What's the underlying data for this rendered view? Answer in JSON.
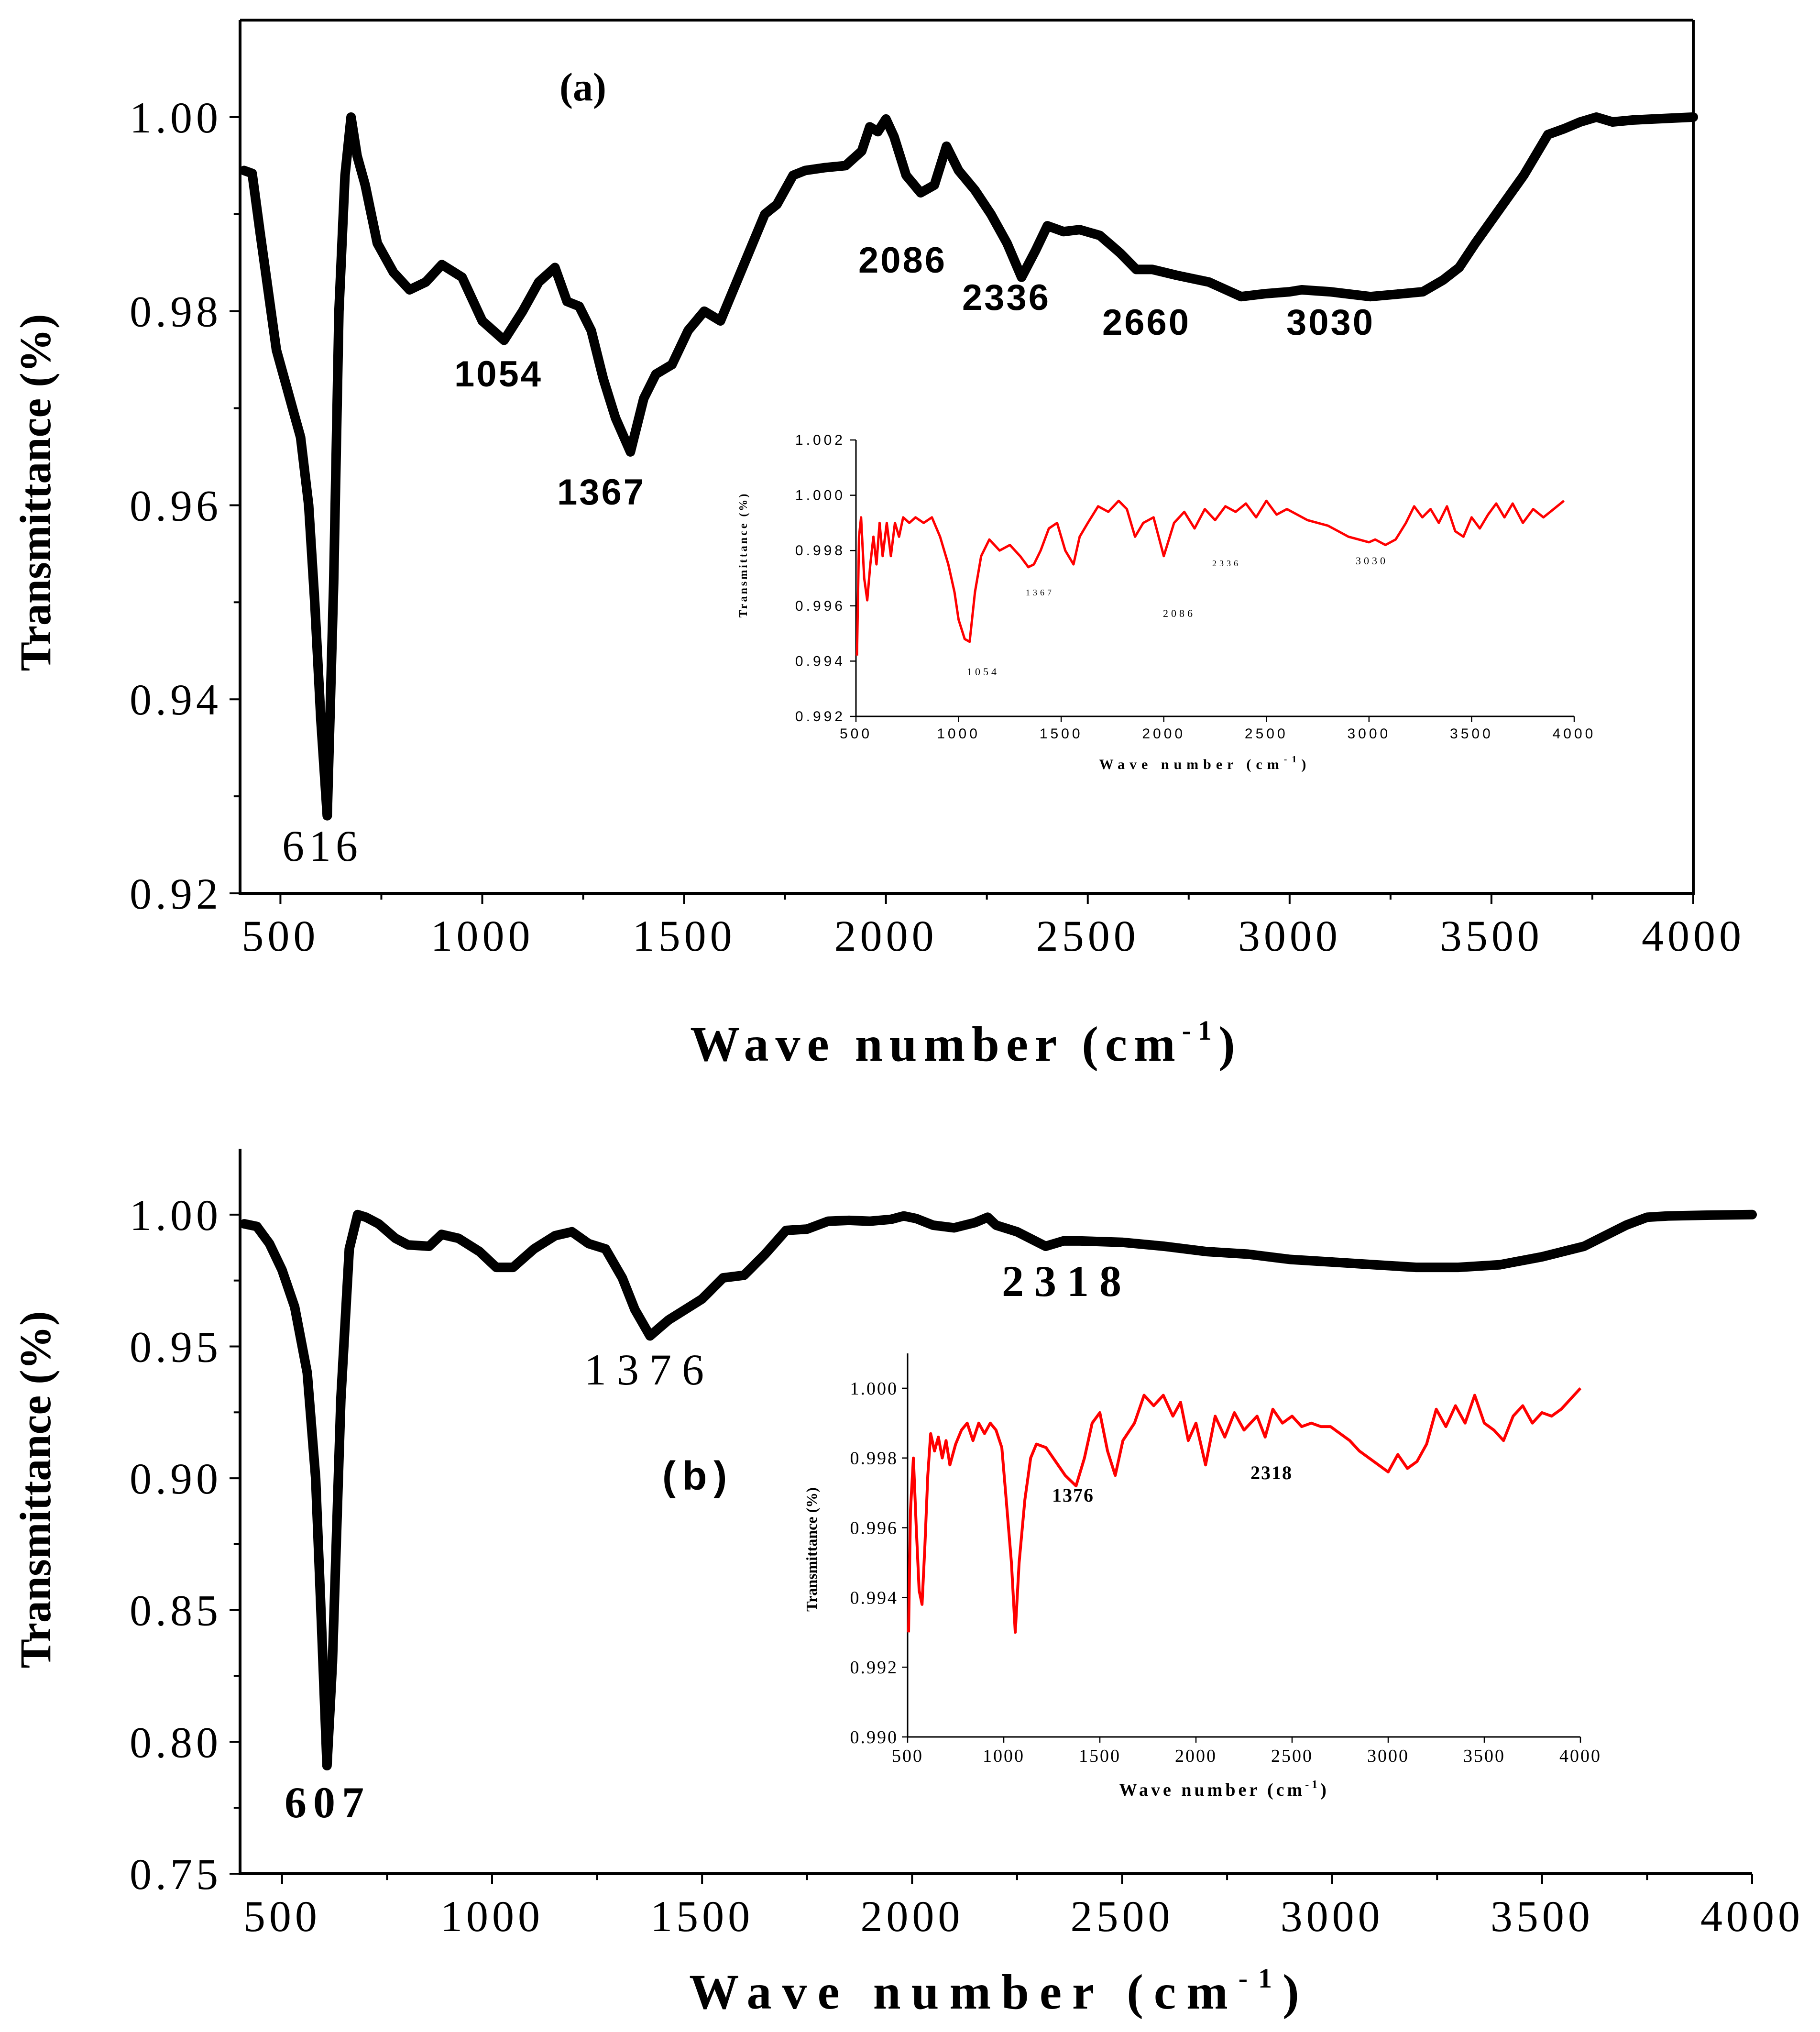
{
  "chart_data": [
    {
      "type": "line",
      "panel_label": "(a)",
      "xlabel_main": "Wave number (cm",
      "xlabel_sup": "-1",
      "xlabel_close": ")",
      "ylabel": "Transmittance (%)",
      "xlim": [
        400,
        4000
      ],
      "ylim": [
        0.92,
        1.01
      ],
      "xticks": [
        500,
        1000,
        1500,
        2000,
        2500,
        3000,
        3500,
        4000
      ],
      "yticks": [
        0.92,
        0.94,
        0.96,
        0.98,
        1.0
      ],
      "xtick_labels": [
        "500",
        "1000",
        "1500",
        "2000",
        "2500",
        "3000",
        "3500",
        "4000"
      ],
      "ytick_labels": [
        "0.92",
        "0.94",
        "0.96",
        "0.98",
        "1.00"
      ],
      "series": [
        {
          "name": "main",
          "color": "#000000",
          "x": [
            410,
            430,
            450,
            470,
            490,
            510,
            530,
            550,
            570,
            585,
            600,
            616,
            632,
            645,
            660,
            675,
            690,
            710,
            740,
            780,
            820,
            860,
            900,
            950,
            1000,
            1054,
            1100,
            1140,
            1180,
            1210,
            1240,
            1270,
            1300,
            1330,
            1367,
            1400,
            1430,
            1470,
            1510,
            1550,
            1590,
            1640,
            1680,
            1700,
            1730,
            1770,
            1800,
            1850,
            1900,
            1940,
            1960,
            1980,
            2000,
            2020,
            2050,
            2086,
            2120,
            2150,
            2180,
            2220,
            2260,
            2300,
            2336,
            2370,
            2400,
            2440,
            2480,
            2530,
            2580,
            2620,
            2660,
            2720,
            2800,
            2880,
            2940,
            3000,
            3030,
            3100,
            3200,
            3280,
            3330,
            3380,
            3420,
            3460,
            3520,
            3580,
            3640,
            3680,
            3720,
            3760,
            3800,
            3850,
            3900,
            3950,
            4000
          ],
          "y": [
            0.9945,
            0.9942,
            0.988,
            0.982,
            0.976,
            0.973,
            0.97,
            0.967,
            0.96,
            0.95,
            0.938,
            0.928,
            0.952,
            0.98,
            0.994,
            1.0,
            0.996,
            0.993,
            0.987,
            0.984,
            0.9822,
            0.983,
            0.9848,
            0.9835,
            0.979,
            0.977,
            0.98,
            0.983,
            0.9845,
            0.981,
            0.9805,
            0.978,
            0.973,
            0.969,
            0.9655,
            0.971,
            0.9735,
            0.9745,
            0.978,
            0.98,
            0.979,
            0.984,
            0.988,
            0.99,
            0.991,
            0.994,
            0.9945,
            0.9948,
            0.995,
            0.9965,
            0.999,
            0.9985,
            0.9998,
            0.998,
            0.994,
            0.9922,
            0.993,
            0.997,
            0.9945,
            0.9925,
            0.99,
            0.987,
            0.9835,
            0.9862,
            0.9888,
            0.9882,
            0.9884,
            0.9878,
            0.986,
            0.9843,
            0.9843,
            0.9837,
            0.983,
            0.9815,
            0.9818,
            0.982,
            0.9822,
            0.982,
            0.9815,
            0.9818,
            0.982,
            0.9832,
            0.9845,
            0.987,
            0.9905,
            0.994,
            0.9982,
            0.9988,
            0.9995,
            1.0,
            0.9995,
            0.9997,
            0.9998,
            0.9999,
            1.0
          ]
        }
      ],
      "annotations": [
        {
          "text": "616",
          "x": 616
        },
        {
          "text": "1054",
          "x": 1054
        },
        {
          "text": "1367",
          "x": 1367
        },
        {
          "text": "2086",
          "x": 2086
        },
        {
          "text": "2336",
          "x": 2336
        },
        {
          "text": "2660",
          "x": 2660
        },
        {
          "text": "3030",
          "x": 3030
        }
      ],
      "inset": {
        "type": "line",
        "xlabel_main": "Wave number (cm",
        "xlabel_sup": "-1",
        "xlabel_close": ")",
        "ylabel": "Transmittance (%)",
        "xlim": [
          500,
          4000
        ],
        "ylim": [
          0.992,
          1.002
        ],
        "xticks": [
          500,
          1000,
          1500,
          2000,
          2500,
          3000,
          3500,
          4000
        ],
        "yticks": [
          0.992,
          0.994,
          0.996,
          0.998,
          1.0,
          1.002
        ],
        "xtick_labels": [
          "500",
          "1000",
          "1500",
          "2000",
          "2500",
          "3000",
          "3500",
          "4000"
        ],
        "ytick_labels": [
          "0.992",
          "0.994",
          "0.996",
          "0.998",
          "1.000",
          "1.002"
        ],
        "series": [
          {
            "name": "inset",
            "color": "#ff0000",
            "x": [
              505,
              515,
              525,
              540,
              555,
              570,
              585,
              600,
              615,
              630,
              650,
              670,
              690,
              710,
              730,
              760,
              790,
              830,
              870,
              910,
              950,
              980,
              1000,
              1030,
              1054,
              1080,
              1110,
              1150,
              1200,
              1250,
              1300,
              1340,
              1367,
              1400,
              1440,
              1480,
              1520,
              1560,
              1590,
              1630,
              1680,
              1730,
              1780,
              1820,
              1860,
              1900,
              1950,
              2000,
              2050,
              2100,
              2150,
              2200,
              2250,
              2300,
              2350,
              2400,
              2450,
              2500,
              2550,
              2600,
              2650,
              2700,
              2750,
              2800,
              2850,
              2900,
              2950,
              3000,
              3030,
              3080,
              3130,
              3180,
              3220,
              3260,
              3300,
              3340,
              3380,
              3420,
              3460,
              3500,
              3540,
              3580,
              3620,
              3660,
              3700,
              3750,
              3800,
              3850,
              3900,
              3950
            ],
            "y": [
              0.9942,
              0.9985,
              0.9992,
              0.997,
              0.9962,
              0.9975,
              0.9985,
              0.9975,
              0.999,
              0.9978,
              0.999,
              0.9978,
              0.999,
              0.9985,
              0.9992,
              0.999,
              0.9992,
              0.999,
              0.9992,
              0.9985,
              0.9975,
              0.9965,
              0.9955,
              0.9948,
              0.9947,
              0.9965,
              0.9978,
              0.9984,
              0.998,
              0.9982,
              0.9978,
              0.9974,
              0.9975,
              0.998,
              0.9988,
              0.999,
              0.998,
              0.9975,
              0.9985,
              0.999,
              0.9996,
              0.9994,
              0.9998,
              0.9995,
              0.9985,
              0.999,
              0.9992,
              0.9978,
              0.999,
              0.9994,
              0.9988,
              0.9995,
              0.9991,
              0.9996,
              0.9994,
              0.9997,
              0.9992,
              0.9998,
              0.9993,
              0.9995,
              0.9993,
              0.9991,
              0.999,
              0.9989,
              0.9987,
              0.9985,
              0.9984,
              0.9983,
              0.9984,
              0.9982,
              0.9984,
              0.999,
              0.9996,
              0.9992,
              0.9995,
              0.999,
              0.9996,
              0.9987,
              0.9985,
              0.9992,
              0.9988,
              0.9993,
              0.9997,
              0.9992,
              0.9997,
              0.999,
              0.9995,
              0.9992,
              0.9995,
              0.9998
            ]
          }
        ],
        "annotations": [
          {
            "text": "1054",
            "x": 1054
          },
          {
            "text": "1367",
            "x": 1367
          },
          {
            "text": "2086",
            "x": 2086
          },
          {
            "text": "2336",
            "x": 2336
          },
          {
            "text": "3030",
            "x": 3030
          }
        ]
      }
    },
    {
      "type": "line",
      "panel_label": "(b)",
      "xlabel_main": "Wave number (cm",
      "xlabel_sup": "-1",
      "xlabel_close": ")",
      "ylabel": "Transmittance (%)",
      "xlim": [
        400,
        4000
      ],
      "ylim": [
        0.75,
        1.025
      ],
      "xticks": [
        500,
        1000,
        1500,
        2000,
        2500,
        3000,
        3500,
        4000
      ],
      "yticks": [
        0.75,
        0.8,
        0.85,
        0.9,
        0.95,
        1.0
      ],
      "xtick_labels": [
        "500",
        "1000",
        "1500",
        "2000",
        "2500",
        "3000",
        "3500",
        "4000"
      ],
      "ytick_labels": [
        "0.75",
        "0.80",
        "0.85",
        "0.90",
        "0.95",
        "1.00"
      ],
      "series": [
        {
          "name": "main",
          "color": "#000000",
          "x": [
            410,
            440,
            470,
            500,
            530,
            560,
            580,
            595,
            607,
            620,
            640,
            660,
            680,
            700,
            730,
            770,
            800,
            850,
            880,
            920,
            970,
            1010,
            1050,
            1100,
            1150,
            1190,
            1230,
            1270,
            1310,
            1340,
            1376,
            1420,
            1460,
            1500,
            1550,
            1600,
            1650,
            1700,
            1750,
            1800,
            1850,
            1900,
            1950,
            1980,
            2010,
            2050,
            2100,
            2150,
            2180,
            2200,
            2250,
            2318,
            2360,
            2400,
            2500,
            2600,
            2700,
            2800,
            2900,
            3000,
            3100,
            3200,
            3300,
            3400,
            3500,
            3600,
            3650,
            3700,
            3750,
            3800,
            3900,
            4000
          ],
          "y": [
            0.9965,
            0.9955,
            0.989,
            0.979,
            0.965,
            0.94,
            0.9,
            0.84,
            0.791,
            0.83,
            0.93,
            0.987,
            1.0,
            0.999,
            0.9965,
            0.991,
            0.9885,
            0.988,
            0.9925,
            0.991,
            0.986,
            0.98,
            0.98,
            0.987,
            0.992,
            0.9935,
            0.989,
            0.987,
            0.976,
            0.964,
            0.954,
            0.96,
            0.964,
            0.968,
            0.976,
            0.977,
            0.985,
            0.994,
            0.9945,
            0.9975,
            0.9978,
            0.9975,
            0.9982,
            0.9995,
            0.9985,
            0.996,
            0.995,
            0.997,
            0.999,
            0.996,
            0.9935,
            0.988,
            0.99,
            0.99,
            0.9895,
            0.988,
            0.986,
            0.985,
            0.983,
            0.982,
            0.981,
            0.98,
            0.98,
            0.981,
            0.984,
            0.988,
            0.992,
            0.996,
            0.999,
            0.9995,
            0.9998,
            1.0
          ]
        }
      ],
      "annotations": [
        {
          "text": "607",
          "x": 607
        },
        {
          "text": "1376",
          "x": 1376
        },
        {
          "text": "2318",
          "x": 2318
        }
      ],
      "inset": {
        "type": "line",
        "xlabel_main": "Wave number (cm",
        "xlabel_sup": "-1",
        "xlabel_close": ")",
        "ylabel": "Transmittance (%)",
        "xlim": [
          500,
          4000
        ],
        "ylim": [
          0.99,
          1.001
        ],
        "xticks": [
          500,
          1000,
          1500,
          2000,
          2500,
          3000,
          3500,
          4000
        ],
        "yticks": [
          0.99,
          0.992,
          0.994,
          0.996,
          0.998,
          1.0
        ],
        "xtick_labels": [
          "500",
          "1000",
          "1500",
          "2000",
          "2500",
          "3000",
          "3500",
          "4000"
        ],
        "ytick_labels": [
          "0.990",
          "0.992",
          "0.994",
          "0.996",
          "0.998",
          "1.000"
        ],
        "series": [
          {
            "name": "inset",
            "color": "#ff0000",
            "x": [
              505,
              515,
              530,
              545,
              560,
              575,
              590,
              605,
              620,
              640,
              660,
              680,
              700,
              720,
              750,
              780,
              810,
              840,
              870,
              900,
              930,
              960,
              990,
              1010,
              1040,
              1060,
              1080,
              1110,
              1140,
              1170,
              1220,
              1270,
              1320,
              1376,
              1420,
              1460,
              1500,
              1540,
              1580,
              1620,
              1680,
              1730,
              1780,
              1830,
              1880,
              1920,
              1960,
              2000,
              2050,
              2100,
              2150,
              2200,
              2250,
              2318,
              2360,
              2400,
              2450,
              2500,
              2550,
              2600,
              2650,
              2700,
              2750,
              2800,
              2850,
              2900,
              2950,
              3000,
              3050,
              3100,
              3150,
              3200,
              3250,
              3300,
              3350,
              3400,
              3450,
              3500,
              3550,
              3600,
              3650,
              3700,
              3750,
              3800,
              3850,
              3900,
              3950,
              4000
            ],
            "y": [
              0.993,
              0.9965,
              0.998,
              0.996,
              0.9942,
              0.9938,
              0.9955,
              0.9975,
              0.9987,
              0.9982,
              0.9986,
              0.998,
              0.9985,
              0.9978,
              0.9984,
              0.9988,
              0.999,
              0.9985,
              0.999,
              0.9987,
              0.999,
              0.9988,
              0.9983,
              0.997,
              0.995,
              0.993,
              0.995,
              0.9968,
              0.998,
              0.9984,
              0.9983,
              0.9979,
              0.9975,
              0.9972,
              0.998,
              0.999,
              0.9993,
              0.9982,
              0.9975,
              0.9985,
              0.999,
              0.9998,
              0.9995,
              0.9998,
              0.9992,
              0.9996,
              0.9985,
              0.999,
              0.9978,
              0.9992,
              0.9986,
              0.9993,
              0.9988,
              0.9992,
              0.9986,
              0.9994,
              0.999,
              0.9992,
              0.9989,
              0.999,
              0.9989,
              0.9989,
              0.9987,
              0.9985,
              0.9982,
              0.998,
              0.9978,
              0.9976,
              0.9981,
              0.9977,
              0.9979,
              0.9984,
              0.9994,
              0.9989,
              0.9995,
              0.999,
              0.9998,
              0.999,
              0.9988,
              0.9985,
              0.9992,
              0.9995,
              0.999,
              0.9993,
              0.9992,
              0.9994,
              0.9997,
              1.0
            ]
          }
        ],
        "annotations": [
          {
            "text": "1376",
            "x": 1376
          },
          {
            "text": "2318",
            "x": 2318
          }
        ]
      }
    }
  ]
}
